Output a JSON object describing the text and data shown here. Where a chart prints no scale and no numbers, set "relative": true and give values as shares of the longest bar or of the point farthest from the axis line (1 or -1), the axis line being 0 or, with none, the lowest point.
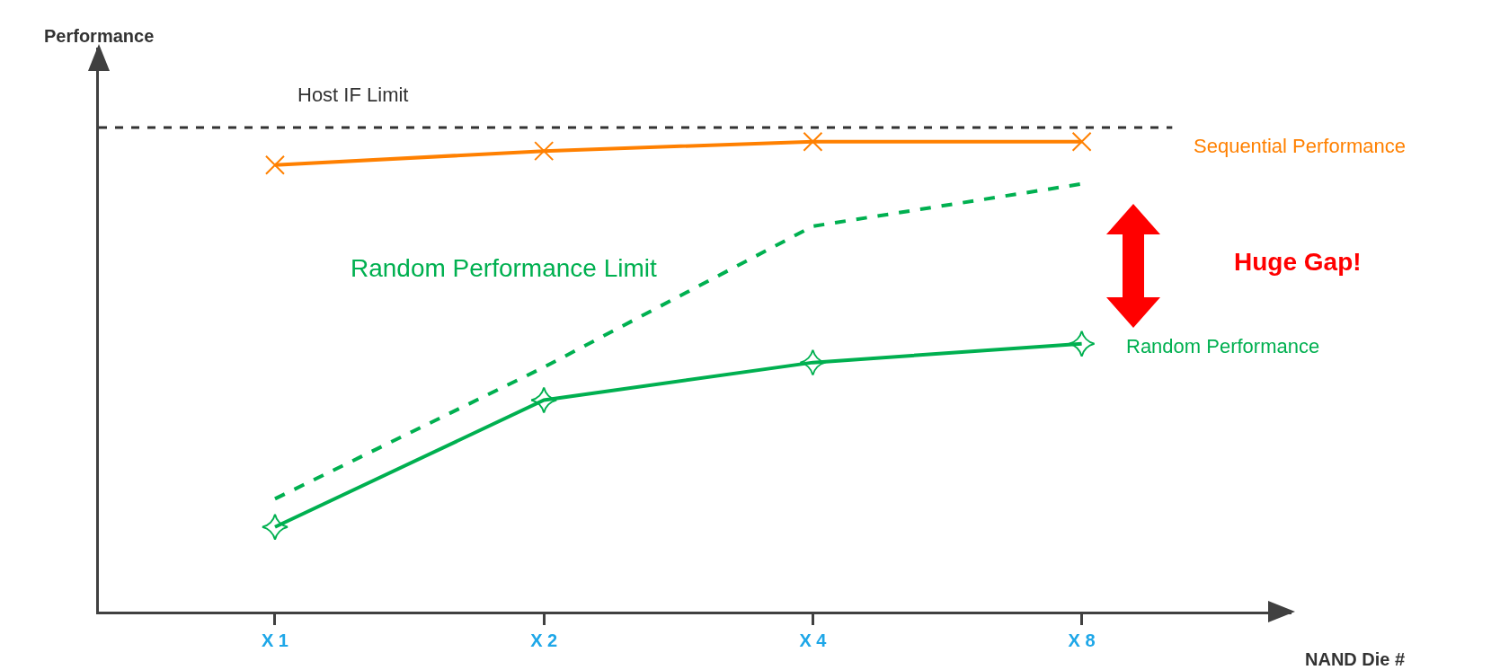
{
  "chart_data": {
    "type": "line",
    "relative": true,
    "xlabel": "NAND Die #",
    "categories": [
      "X 1",
      "X 2",
      "X 4",
      "X 8"
    ],
    "series": [
      {
        "name": "Sequential Performance",
        "color": "#ff8000",
        "values": [
          0.95,
          0.98,
          1,
          1
        ],
        "marker": "cross",
        "line_style": "solid"
      },
      {
        "name": "Random Performance Limit",
        "color": "#00b050",
        "values": [
          0.24,
          0.52,
          0.82,
          0.91
        ],
        "marker": "none",
        "line_style": "dashed"
      },
      {
        "name": "Random Performance",
        "color": "#00b050",
        "values": [
          0.18,
          0.45,
          0.53,
          0.57
        ],
        "marker": "star",
        "line_style": "solid"
      }
    ],
    "ref_lines": [
      {
        "axis": "y",
        "value": 1.03,
        "label": "Host IF Limit",
        "color": "#333333",
        "line_style": "dashed"
      }
    ],
    "annotations": [
      "Performance",
      "Huge Gap!"
    ],
    "grid": false,
    "legend": false
  }
}
